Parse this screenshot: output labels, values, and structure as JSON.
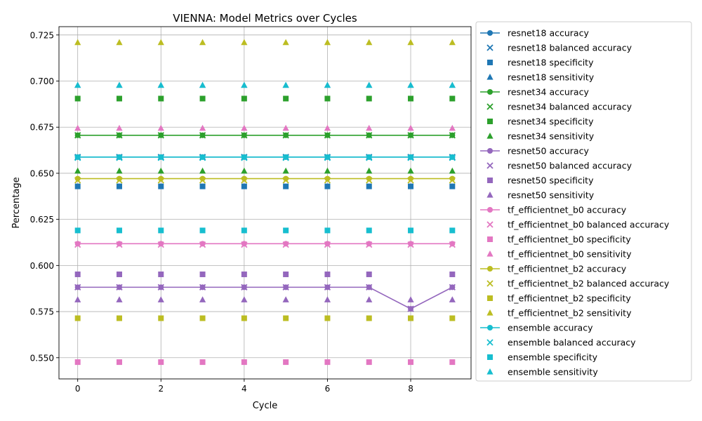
{
  "chart_data": {
    "type": "line",
    "title": "VIENNA: Model Metrics over Cycles",
    "xlabel": "Cycle",
    "ylabel": "Percentage",
    "xlim": [
      -0.45,
      9.45
    ],
    "ylim": [
      0.5385,
      0.7295
    ],
    "x_ticks": [
      0,
      2,
      4,
      6,
      8
    ],
    "y_ticks": [
      0.55,
      0.575,
      0.6,
      0.625,
      0.65,
      0.675,
      0.7,
      0.725
    ],
    "grid": true,
    "legend_position": "outside-right",
    "x": [
      0,
      1,
      2,
      3,
      4,
      5,
      6,
      7,
      8,
      9
    ],
    "series": [
      {
        "name": "resnet18 accuracy",
        "model": "resnet18",
        "metric": "accuracy",
        "color": "#1f77b4",
        "marker": "circle",
        "line": true,
        "values": [
          0.6588,
          0.6588,
          0.6588,
          0.6588,
          0.6588,
          0.6588,
          0.6588,
          0.6588,
          0.6588,
          0.6588
        ]
      },
      {
        "name": "resnet18 balanced accuracy",
        "model": "resnet18",
        "metric": "balanced accuracy",
        "color": "#1f77b4",
        "marker": "x",
        "line": false,
        "values": [
          0.6588,
          0.6588,
          0.6588,
          0.6588,
          0.6588,
          0.6588,
          0.6588,
          0.6588,
          0.6588,
          0.6588
        ]
      },
      {
        "name": "resnet18 specificity",
        "model": "resnet18",
        "metric": "specificity",
        "color": "#1f77b4",
        "marker": "square",
        "line": false,
        "values": [
          0.6429,
          0.6429,
          0.6429,
          0.6429,
          0.6429,
          0.6429,
          0.6429,
          0.6429,
          0.6429,
          0.6429
        ]
      },
      {
        "name": "resnet18 sensitivity",
        "model": "resnet18",
        "metric": "sensitivity",
        "color": "#1f77b4",
        "marker": "triangle",
        "line": false,
        "values": [
          0.6977,
          0.6977,
          0.6977,
          0.6977,
          0.6977,
          0.6977,
          0.6977,
          0.6977,
          0.6977,
          0.6977
        ]
      },
      {
        "name": "resnet34 accuracy",
        "model": "resnet34",
        "metric": "accuracy",
        "color": "#2ca02c",
        "marker": "circle",
        "line": true,
        "values": [
          0.6706,
          0.6706,
          0.6706,
          0.6706,
          0.6706,
          0.6706,
          0.6706,
          0.6706,
          0.6706,
          0.6706
        ]
      },
      {
        "name": "resnet34 balanced accuracy",
        "model": "resnet34",
        "metric": "balanced accuracy",
        "color": "#2ca02c",
        "marker": "x",
        "line": false,
        "values": [
          0.6706,
          0.6706,
          0.6706,
          0.6706,
          0.6706,
          0.6706,
          0.6706,
          0.6706,
          0.6706,
          0.6706
        ]
      },
      {
        "name": "resnet34 specificity",
        "model": "resnet34",
        "metric": "specificity",
        "color": "#2ca02c",
        "marker": "square",
        "line": false,
        "values": [
          0.6905,
          0.6905,
          0.6905,
          0.6905,
          0.6905,
          0.6905,
          0.6905,
          0.6905,
          0.6905,
          0.6905
        ]
      },
      {
        "name": "resnet34 sensitivity",
        "model": "resnet34",
        "metric": "sensitivity",
        "color": "#2ca02c",
        "marker": "triangle",
        "line": false,
        "values": [
          0.6512,
          0.6512,
          0.6512,
          0.6512,
          0.6512,
          0.6512,
          0.6512,
          0.6512,
          0.6512,
          0.6512
        ]
      },
      {
        "name": "resnet50 accuracy",
        "model": "resnet50",
        "metric": "accuracy",
        "color": "#9467bd",
        "marker": "circle",
        "line": true,
        "values": [
          0.5882,
          0.5882,
          0.5882,
          0.5882,
          0.5882,
          0.5882,
          0.5882,
          0.5882,
          0.5765,
          0.5882
        ]
      },
      {
        "name": "resnet50 balanced accuracy",
        "model": "resnet50",
        "metric": "balanced accuracy",
        "color": "#9467bd",
        "marker": "x",
        "line": false,
        "values": [
          0.5882,
          0.5882,
          0.5882,
          0.5882,
          0.5882,
          0.5882,
          0.5882,
          0.5882,
          0.5765,
          0.5882
        ]
      },
      {
        "name": "resnet50 specificity",
        "model": "resnet50",
        "metric": "specificity",
        "color": "#9467bd",
        "marker": "square",
        "line": false,
        "values": [
          0.5952,
          0.5952,
          0.5952,
          0.5952,
          0.5952,
          0.5952,
          0.5952,
          0.5952,
          0.5714,
          0.5952
        ]
      },
      {
        "name": "resnet50 sensitivity",
        "model": "resnet50",
        "metric": "sensitivity",
        "color": "#9467bd",
        "marker": "triangle",
        "line": false,
        "values": [
          0.5814,
          0.5814,
          0.5814,
          0.5814,
          0.5814,
          0.5814,
          0.5814,
          0.5814,
          0.5814,
          0.5814
        ]
      },
      {
        "name": "tf_efficientnet_b0 accuracy",
        "model": "tf_efficientnet_b0",
        "metric": "accuracy",
        "color": "#e377c2",
        "marker": "circle",
        "line": true,
        "values": [
          0.6118,
          0.6118,
          0.6118,
          0.6118,
          0.6118,
          0.6118,
          0.6118,
          0.6118,
          0.6118,
          0.6118
        ]
      },
      {
        "name": "tf_efficientnet_b0 balanced accuracy",
        "model": "tf_efficientnet_b0",
        "metric": "balanced accuracy",
        "color": "#e377c2",
        "marker": "x",
        "line": false,
        "values": [
          0.6113,
          0.6113,
          0.6113,
          0.6113,
          0.6113,
          0.6113,
          0.6113,
          0.6113,
          0.6113,
          0.6113
        ]
      },
      {
        "name": "tf_efficientnet_b0 specificity",
        "model": "tf_efficientnet_b0",
        "metric": "specificity",
        "color": "#e377c2",
        "marker": "square",
        "line": false,
        "values": [
          0.5476,
          0.5476,
          0.5476,
          0.5476,
          0.5476,
          0.5476,
          0.5476,
          0.5476,
          0.5476,
          0.5476
        ]
      },
      {
        "name": "tf_efficientnet_b0 sensitivity",
        "model": "tf_efficientnet_b0",
        "metric": "sensitivity",
        "color": "#e377c2",
        "marker": "triangle",
        "line": false,
        "values": [
          0.6744,
          0.6744,
          0.6744,
          0.6744,
          0.6744,
          0.6744,
          0.6744,
          0.6744,
          0.6744,
          0.6744
        ]
      },
      {
        "name": "tf_efficientnet_b2 accuracy",
        "model": "tf_efficientnet_b2",
        "metric": "accuracy",
        "color": "#bcbd22",
        "marker": "circle",
        "line": true,
        "values": [
          0.6471,
          0.6471,
          0.6471,
          0.6471,
          0.6471,
          0.6471,
          0.6471,
          0.6471,
          0.6471,
          0.6471
        ]
      },
      {
        "name": "tf_efficientnet_b2 balanced accuracy",
        "model": "tf_efficientnet_b2",
        "metric": "balanced accuracy",
        "color": "#bcbd22",
        "marker": "x",
        "line": false,
        "values": [
          0.6462,
          0.6462,
          0.6462,
          0.6462,
          0.6462,
          0.6462,
          0.6462,
          0.6462,
          0.6462,
          0.6462
        ]
      },
      {
        "name": "tf_efficientnet_b2 specificity",
        "model": "tf_efficientnet_b2",
        "metric": "specificity",
        "color": "#bcbd22",
        "marker": "square",
        "line": false,
        "values": [
          0.5714,
          0.5714,
          0.5714,
          0.5714,
          0.5714,
          0.5714,
          0.5714,
          0.5714,
          0.5714,
          0.5714
        ]
      },
      {
        "name": "tf_efficientnet_b2 sensitivity",
        "model": "tf_efficientnet_b2",
        "metric": "sensitivity",
        "color": "#bcbd22",
        "marker": "triangle",
        "line": false,
        "values": [
          0.7209,
          0.7209,
          0.7209,
          0.7209,
          0.7209,
          0.7209,
          0.7209,
          0.7209,
          0.7209,
          0.7209
        ]
      },
      {
        "name": "ensemble accuracy",
        "model": "ensemble",
        "metric": "accuracy",
        "color": "#17becf",
        "marker": "circle",
        "line": true,
        "values": [
          0.6588,
          0.6588,
          0.6588,
          0.6588,
          0.6588,
          0.6588,
          0.6588,
          0.6588,
          0.6588,
          0.6588
        ]
      },
      {
        "name": "ensemble balanced accuracy",
        "model": "ensemble",
        "metric": "balanced accuracy",
        "color": "#17becf",
        "marker": "x",
        "line": false,
        "values": [
          0.6584,
          0.6584,
          0.6584,
          0.6584,
          0.6584,
          0.6584,
          0.6584,
          0.6584,
          0.6584,
          0.6584
        ]
      },
      {
        "name": "ensemble specificity",
        "model": "ensemble",
        "metric": "specificity",
        "color": "#17becf",
        "marker": "square",
        "line": false,
        "values": [
          0.619,
          0.619,
          0.619,
          0.619,
          0.619,
          0.619,
          0.619,
          0.619,
          0.619,
          0.619
        ]
      },
      {
        "name": "ensemble sensitivity",
        "model": "ensemble",
        "metric": "sensitivity",
        "color": "#17becf",
        "marker": "triangle",
        "line": false,
        "values": [
          0.6977,
          0.6977,
          0.6977,
          0.6977,
          0.6977,
          0.6977,
          0.6977,
          0.6977,
          0.6977,
          0.6977
        ]
      }
    ]
  }
}
